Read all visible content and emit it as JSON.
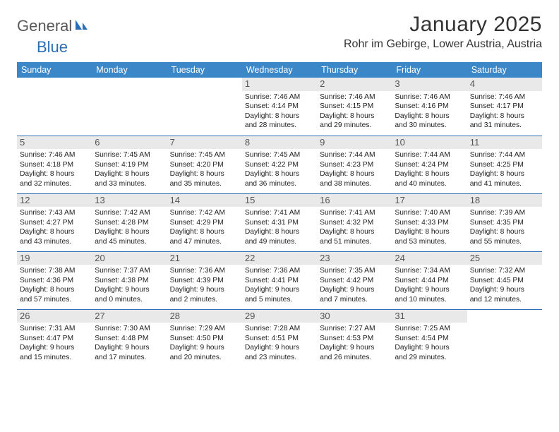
{
  "logo": {
    "text1": "General",
    "text2": "Blue"
  },
  "title": "January 2025",
  "location": "Rohr im Gebirge, Lower Austria, Austria",
  "colors": {
    "header_bg": "#3b87c8",
    "header_fg": "#ffffff",
    "row_border": "#2a6fb5",
    "daynum_bg": "#e9e9e9",
    "daynum_fg": "#555555",
    "body_fg": "#222222",
    "logo_gray": "#5a5a5a",
    "logo_blue": "#2a6fb5",
    "title_fg": "#333333"
  },
  "day_headers": [
    "Sunday",
    "Monday",
    "Tuesday",
    "Wednesday",
    "Thursday",
    "Friday",
    "Saturday"
  ],
  "weeks": [
    [
      null,
      null,
      null,
      {
        "n": "1",
        "sr": "7:46 AM",
        "ss": "4:14 PM",
        "dl1": "8 hours",
        "dl2": "and 28 minutes."
      },
      {
        "n": "2",
        "sr": "7:46 AM",
        "ss": "4:15 PM",
        "dl1": "8 hours",
        "dl2": "and 29 minutes."
      },
      {
        "n": "3",
        "sr": "7:46 AM",
        "ss": "4:16 PM",
        "dl1": "8 hours",
        "dl2": "and 30 minutes."
      },
      {
        "n": "4",
        "sr": "7:46 AM",
        "ss": "4:17 PM",
        "dl1": "8 hours",
        "dl2": "and 31 minutes."
      }
    ],
    [
      {
        "n": "5",
        "sr": "7:46 AM",
        "ss": "4:18 PM",
        "dl1": "8 hours",
        "dl2": "and 32 minutes."
      },
      {
        "n": "6",
        "sr": "7:45 AM",
        "ss": "4:19 PM",
        "dl1": "8 hours",
        "dl2": "and 33 minutes."
      },
      {
        "n": "7",
        "sr": "7:45 AM",
        "ss": "4:20 PM",
        "dl1": "8 hours",
        "dl2": "and 35 minutes."
      },
      {
        "n": "8",
        "sr": "7:45 AM",
        "ss": "4:22 PM",
        "dl1": "8 hours",
        "dl2": "and 36 minutes."
      },
      {
        "n": "9",
        "sr": "7:44 AM",
        "ss": "4:23 PM",
        "dl1": "8 hours",
        "dl2": "and 38 minutes."
      },
      {
        "n": "10",
        "sr": "7:44 AM",
        "ss": "4:24 PM",
        "dl1": "8 hours",
        "dl2": "and 40 minutes."
      },
      {
        "n": "11",
        "sr": "7:44 AM",
        "ss": "4:25 PM",
        "dl1": "8 hours",
        "dl2": "and 41 minutes."
      }
    ],
    [
      {
        "n": "12",
        "sr": "7:43 AM",
        "ss": "4:27 PM",
        "dl1": "8 hours",
        "dl2": "and 43 minutes."
      },
      {
        "n": "13",
        "sr": "7:42 AM",
        "ss": "4:28 PM",
        "dl1": "8 hours",
        "dl2": "and 45 minutes."
      },
      {
        "n": "14",
        "sr": "7:42 AM",
        "ss": "4:29 PM",
        "dl1": "8 hours",
        "dl2": "and 47 minutes."
      },
      {
        "n": "15",
        "sr": "7:41 AM",
        "ss": "4:31 PM",
        "dl1": "8 hours",
        "dl2": "and 49 minutes."
      },
      {
        "n": "16",
        "sr": "7:41 AM",
        "ss": "4:32 PM",
        "dl1": "8 hours",
        "dl2": "and 51 minutes."
      },
      {
        "n": "17",
        "sr": "7:40 AM",
        "ss": "4:33 PM",
        "dl1": "8 hours",
        "dl2": "and 53 minutes."
      },
      {
        "n": "18",
        "sr": "7:39 AM",
        "ss": "4:35 PM",
        "dl1": "8 hours",
        "dl2": "and 55 minutes."
      }
    ],
    [
      {
        "n": "19",
        "sr": "7:38 AM",
        "ss": "4:36 PM",
        "dl1": "8 hours",
        "dl2": "and 57 minutes."
      },
      {
        "n": "20",
        "sr": "7:37 AM",
        "ss": "4:38 PM",
        "dl1": "9 hours",
        "dl2": "and 0 minutes."
      },
      {
        "n": "21",
        "sr": "7:36 AM",
        "ss": "4:39 PM",
        "dl1": "9 hours",
        "dl2": "and 2 minutes."
      },
      {
        "n": "22",
        "sr": "7:36 AM",
        "ss": "4:41 PM",
        "dl1": "9 hours",
        "dl2": "and 5 minutes."
      },
      {
        "n": "23",
        "sr": "7:35 AM",
        "ss": "4:42 PM",
        "dl1": "9 hours",
        "dl2": "and 7 minutes."
      },
      {
        "n": "24",
        "sr": "7:34 AM",
        "ss": "4:44 PM",
        "dl1": "9 hours",
        "dl2": "and 10 minutes."
      },
      {
        "n": "25",
        "sr": "7:32 AM",
        "ss": "4:45 PM",
        "dl1": "9 hours",
        "dl2": "and 12 minutes."
      }
    ],
    [
      {
        "n": "26",
        "sr": "7:31 AM",
        "ss": "4:47 PM",
        "dl1": "9 hours",
        "dl2": "and 15 minutes."
      },
      {
        "n": "27",
        "sr": "7:30 AM",
        "ss": "4:48 PM",
        "dl1": "9 hours",
        "dl2": "and 17 minutes."
      },
      {
        "n": "28",
        "sr": "7:29 AM",
        "ss": "4:50 PM",
        "dl1": "9 hours",
        "dl2": "and 20 minutes."
      },
      {
        "n": "29",
        "sr": "7:28 AM",
        "ss": "4:51 PM",
        "dl1": "9 hours",
        "dl2": "and 23 minutes."
      },
      {
        "n": "30",
        "sr": "7:27 AM",
        "ss": "4:53 PM",
        "dl1": "9 hours",
        "dl2": "and 26 minutes."
      },
      {
        "n": "31",
        "sr": "7:25 AM",
        "ss": "4:54 PM",
        "dl1": "9 hours",
        "dl2": "and 29 minutes."
      },
      null
    ]
  ],
  "labels": {
    "sunrise": "Sunrise: ",
    "sunset": "Sunset: ",
    "daylight": "Daylight: "
  }
}
